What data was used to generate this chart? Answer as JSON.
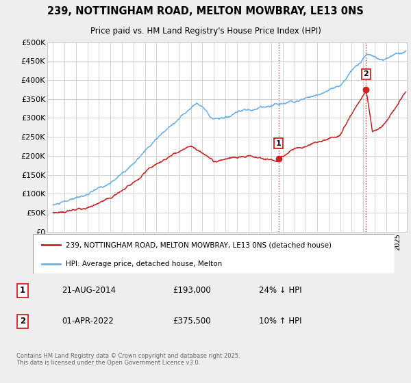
{
  "title1": "239, NOTTINGHAM ROAD, MELTON MOWBRAY, LE13 0NS",
  "title2": "Price paid vs. HM Land Registry's House Price Index (HPI)",
  "ylabel_ticks": [
    "£0",
    "£50K",
    "£100K",
    "£150K",
    "£200K",
    "£250K",
    "£300K",
    "£350K",
    "£400K",
    "£450K",
    "£500K"
  ],
  "ylim": [
    0,
    500000
  ],
  "xlim_start": 1994.5,
  "xlim_end": 2025.8,
  "hpi_color": "#6ab0e8",
  "price_color": "#cc2222",
  "vline_color": "#cc2222",
  "point1_x": 2014.64,
  "point1_y": 193000,
  "point2_x": 2022.25,
  "point2_y": 375500,
  "legend_line1": "239, NOTTINGHAM ROAD, MELTON MOWBRAY, LE13 0NS (detached house)",
  "legend_line2": "HPI: Average price, detached house, Melton",
  "annotation1_num": "1",
  "annotation1_date": "21-AUG-2014",
  "annotation1_price": "£193,000",
  "annotation1_hpi": "24% ↓ HPI",
  "annotation2_num": "2",
  "annotation2_date": "01-APR-2022",
  "annotation2_price": "£375,500",
  "annotation2_hpi": "10% ↑ HPI",
  "footer": "Contains HM Land Registry data © Crown copyright and database right 2025.\nThis data is licensed under the Open Government Licence v3.0.",
  "bg_color": "#eeeeee",
  "plot_bg_color": "#ffffff",
  "grid_color": "#cccccc"
}
